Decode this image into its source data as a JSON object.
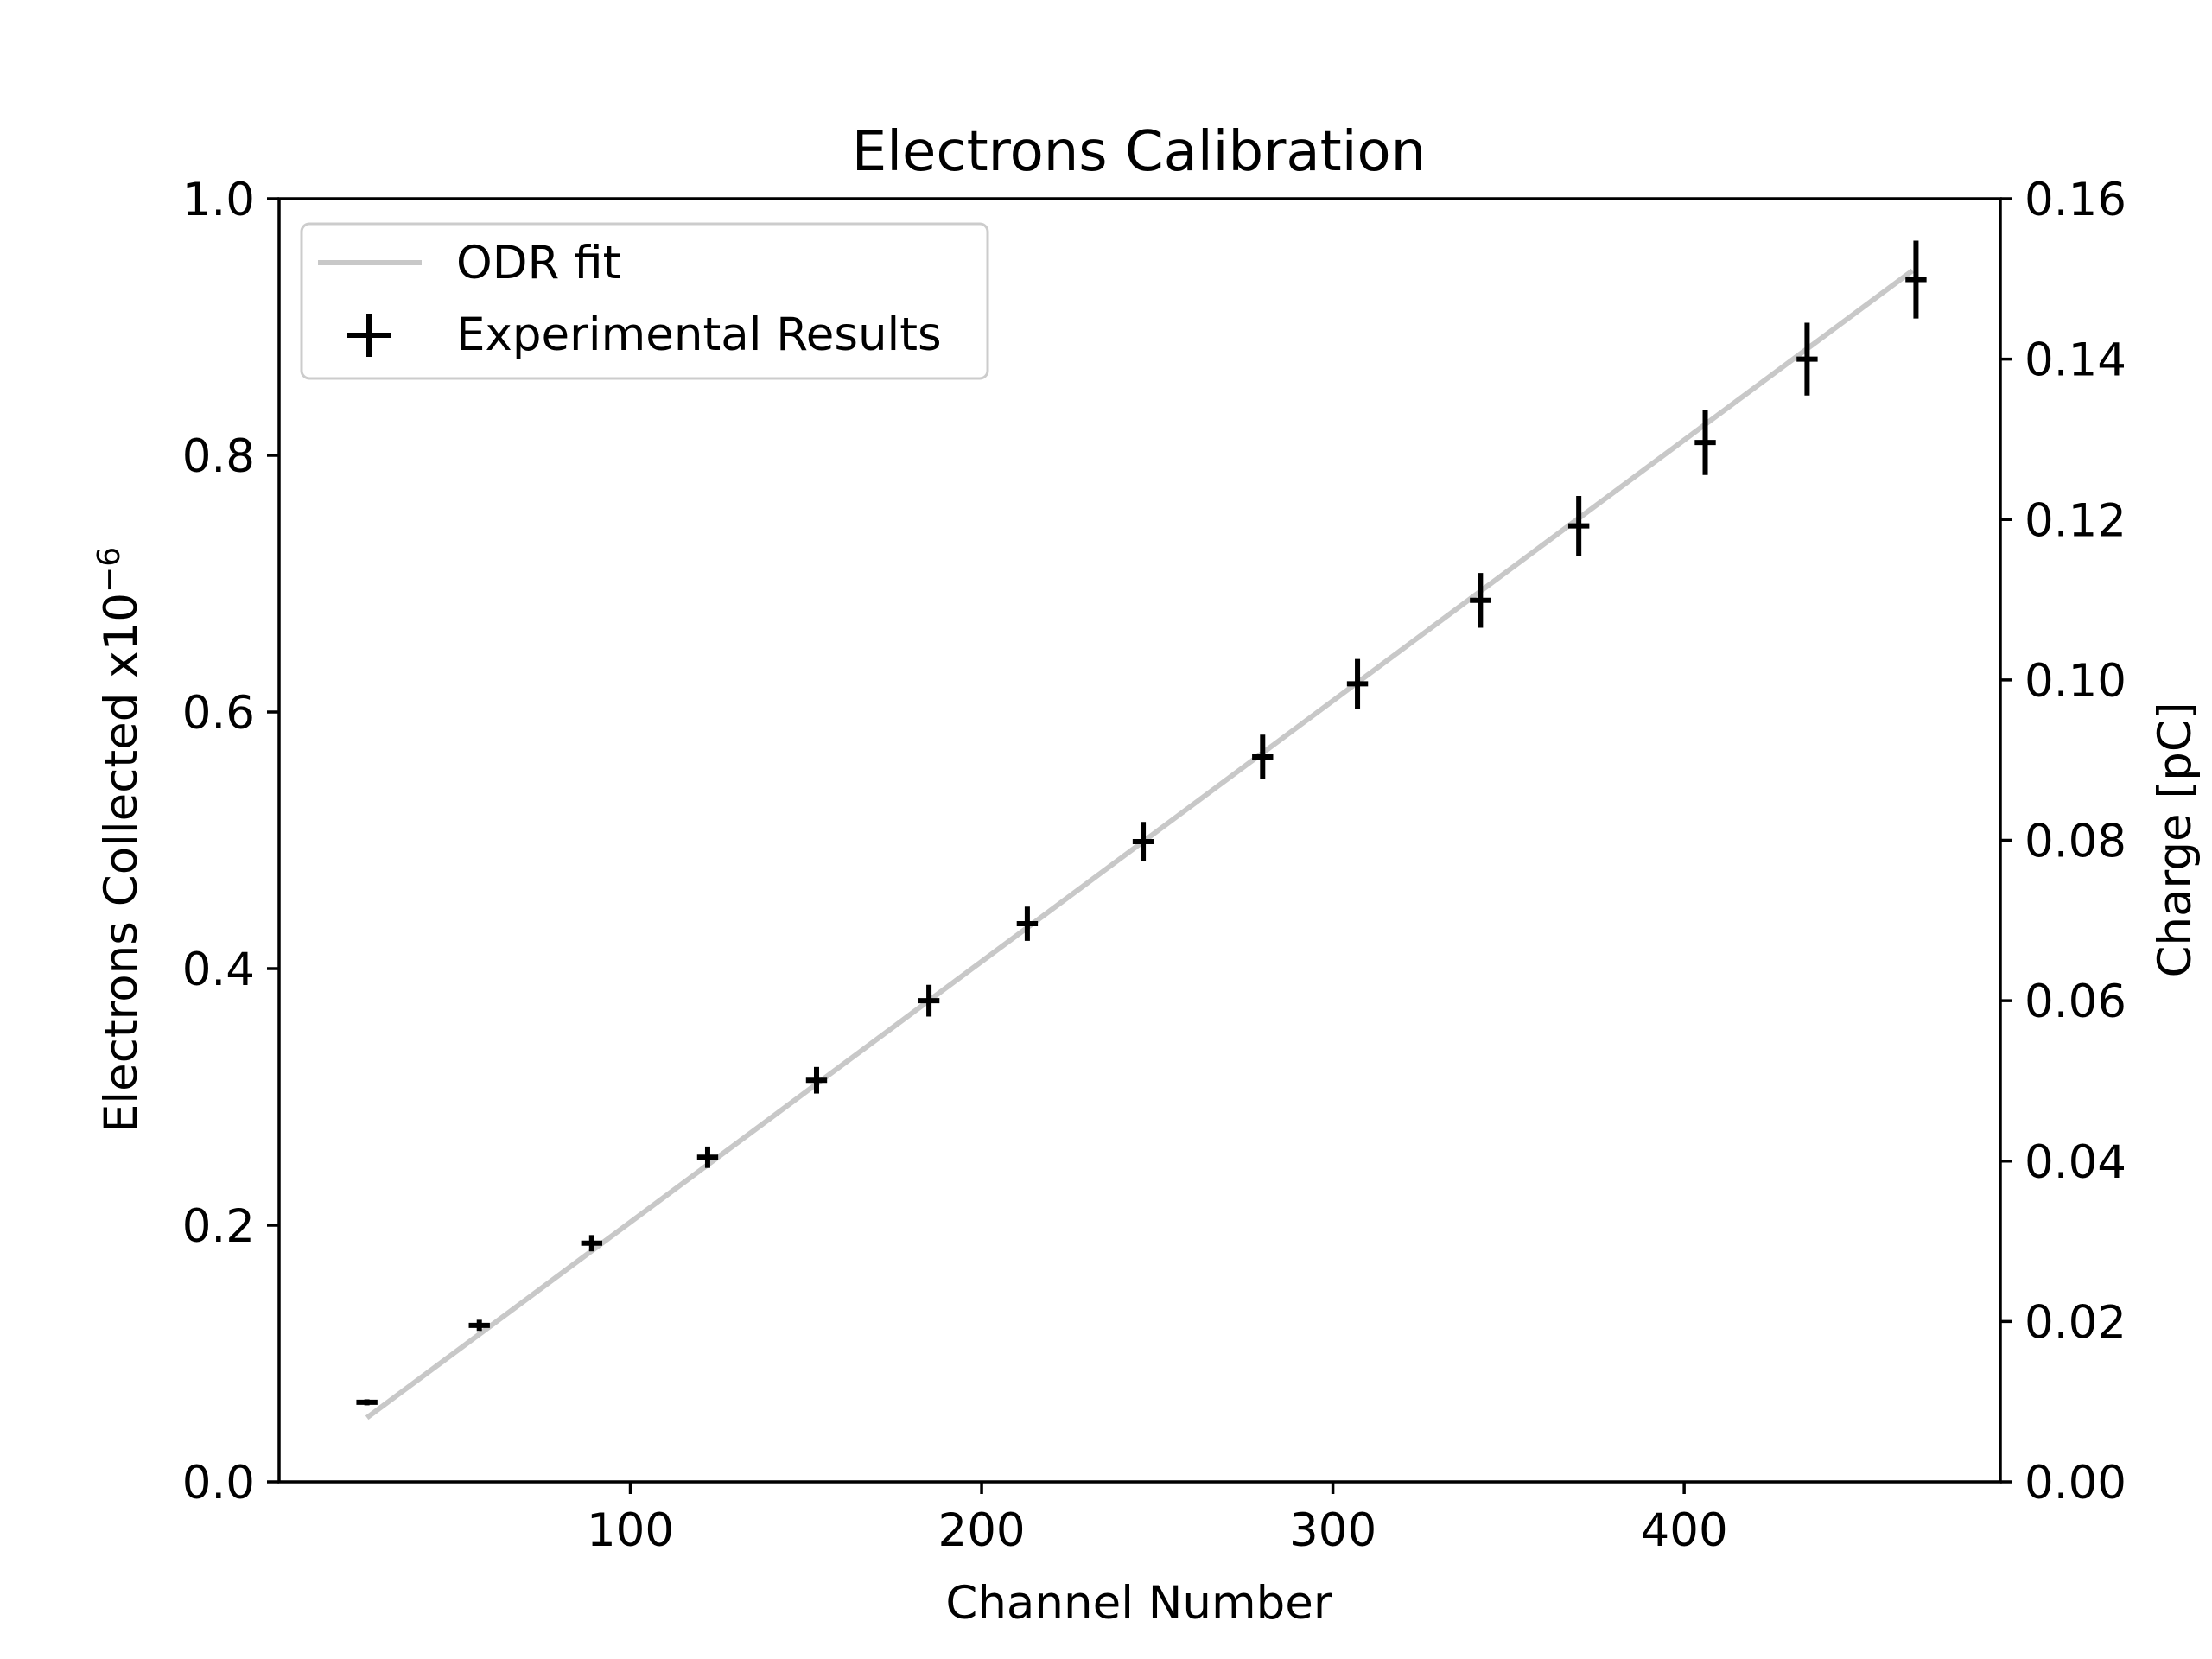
{
  "chart_data": {
    "type": "scatter",
    "title": "Electrons Calibration",
    "xlabel": "Channel Number",
    "ylabel_prefix": "Electrons Collected x10",
    "ylabel_exponent": "−6",
    "y2label": "Charge [pC]",
    "xlim": [
      0,
      490
    ],
    "ylim": [
      0,
      1.0
    ],
    "y2lim": [
      0,
      0.16
    ],
    "xticks": [
      100,
      200,
      300,
      400
    ],
    "xtick_labels": [
      "100",
      "200",
      "300",
      "400"
    ],
    "yticks": [
      0.0,
      0.2,
      0.4,
      0.6,
      0.8,
      1.0
    ],
    "ytick_labels": [
      "0.0",
      "0.2",
      "0.4",
      "0.6",
      "0.8",
      "1.0"
    ],
    "y2ticks": [
      0.0,
      0.02,
      0.04,
      0.06,
      0.08,
      0.1,
      0.12,
      0.14,
      0.16
    ],
    "y2tick_labels": [
      "0.00",
      "0.02",
      "0.04",
      "0.06",
      "0.08",
      "0.10",
      "0.12",
      "0.14",
      "0.16"
    ],
    "grid": false,
    "legend_position": "top-left",
    "series": [
      {
        "name": "ODR fit",
        "kind": "line",
        "color": "#c8c8c8",
        "x": [
          25,
          465
        ],
        "y": [
          0.05,
          0.944
        ]
      },
      {
        "name": "Experimental Results",
        "kind": "errorbar",
        "color": "#000000",
        "x": [
          25,
          57,
          89,
          122,
          153,
          185,
          213,
          246,
          280,
          307,
          342,
          370,
          406,
          435,
          466
        ],
        "y": [
          0.062,
          0.122,
          0.186,
          0.253,
          0.313,
          0.375,
          0.435,
          0.499,
          0.565,
          0.622,
          0.687,
          0.745,
          0.81,
          0.875,
          0.937
        ],
        "yerr": [
          0.001,
          0.003,
          0.005,
          0.007,
          0.009,
          0.011,
          0.012,
          0.014,
          0.016,
          0.018,
          0.02,
          0.022,
          0.024,
          0.027,
          0.029
        ],
        "xerr": [
          3,
          3,
          3,
          3,
          3,
          3,
          3,
          3,
          3,
          3,
          3,
          3,
          3,
          3,
          3
        ]
      }
    ]
  }
}
